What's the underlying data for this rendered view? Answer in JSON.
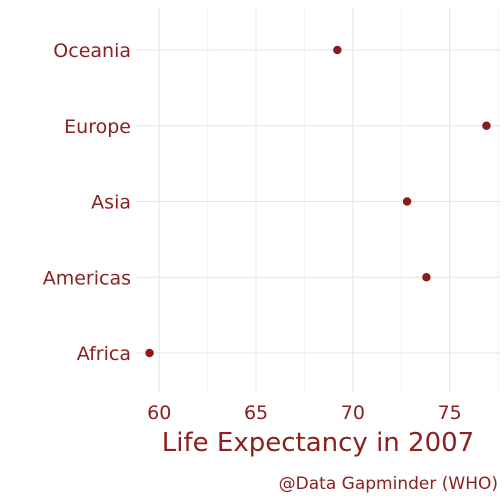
{
  "chart_data": {
    "type": "scatter",
    "categories": [
      "Africa",
      "Americas",
      "Asia",
      "Europe",
      "Oceania"
    ],
    "values": [
      59.5,
      73.8,
      72.8,
      76.9,
      69.2
    ],
    "xlabel": "Life Expectancy in 2007",
    "caption": "@Data Gapminder (WHO)",
    "xlim": [
      58.8,
      77.6
    ],
    "xticks": [
      60,
      65,
      70,
      75
    ],
    "grid": true,
    "point_color": "#8b1a1a"
  },
  "colors": {
    "text": "#8b2020",
    "point": "#8b1a1a"
  }
}
